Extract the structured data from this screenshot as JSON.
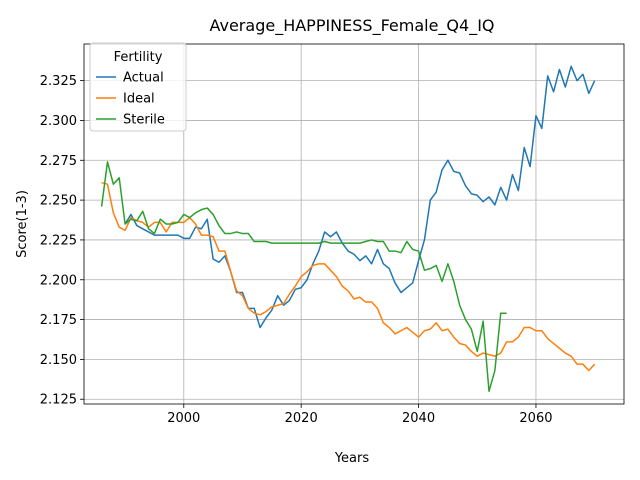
{
  "chart_data": {
    "type": "line",
    "title": "Average_HAPPINESS_Female_Q4_IQ",
    "xlabel": "Years",
    "ylabel": "Score(1-3)",
    "xlim": [
      1983,
      2075
    ],
    "ylim": [
      2.122,
      2.348
    ],
    "xticks": [
      2000,
      2020,
      2040,
      2060
    ],
    "yticks": [
      2.125,
      2.15,
      2.175,
      2.2,
      2.225,
      2.25,
      2.275,
      2.3,
      2.325
    ],
    "ytick_labels": [
      "2.125",
      "2.150",
      "2.175",
      "2.200",
      "2.225",
      "2.250",
      "2.275",
      "2.300",
      "2.325"
    ],
    "grid": true,
    "legend": {
      "title": "Fertility",
      "placement": "top-left"
    },
    "series": [
      {
        "name": "Actual",
        "color": "#1f77b4",
        "x": [
          1990,
          1991,
          1992,
          1993,
          1994,
          1995,
          1996,
          1997,
          1998,
          1999,
          2000,
          2001,
          2002,
          2003,
          2004,
          2005,
          2006,
          2007,
          2008,
          2009,
          2010,
          2011,
          2012,
          2013,
          2014,
          2015,
          2016,
          2017,
          2018,
          2019,
          2020,
          2021,
          2022,
          2023,
          2024,
          2025,
          2026,
          2027,
          2028,
          2029,
          2030,
          2031,
          2032,
          2033,
          2034,
          2035,
          2036,
          2037,
          2038,
          2039,
          2040,
          2041,
          2042,
          2043,
          2044,
          2045,
          2046,
          2047,
          2048,
          2049,
          2050,
          2051,
          2052,
          2053,
          2054,
          2055,
          2056,
          2057,
          2058,
          2059,
          2060,
          2061,
          2062,
          2063,
          2064,
          2065,
          2066,
          2067,
          2068,
          2069,
          2070
        ],
        "values": [
          2.235,
          2.241,
          2.234,
          2.232,
          2.23,
          2.228,
          2.228,
          2.228,
          2.228,
          2.228,
          2.226,
          2.226,
          2.233,
          2.232,
          2.238,
          2.213,
          2.211,
          2.215,
          2.205,
          2.192,
          2.192,
          2.182,
          2.182,
          2.17,
          2.176,
          2.181,
          2.19,
          2.184,
          2.187,
          2.194,
          2.195,
          2.2,
          2.21,
          2.218,
          2.23,
          2.227,
          2.23,
          2.223,
          2.218,
          2.216,
          2.212,
          2.215,
          2.21,
          2.219,
          2.21,
          2.207,
          2.198,
          2.192,
          2.195,
          2.198,
          2.212,
          2.225,
          2.25,
          2.255,
          2.269,
          2.275,
          2.268,
          2.267,
          2.259,
          2.254,
          2.253,
          2.249,
          2.252,
          2.247,
          2.258,
          2.25,
          2.266,
          2.256,
          2.283,
          2.271,
          2.303,
          2.295,
          2.328,
          2.318,
          2.332,
          2.321,
          2.334,
          2.325,
          2.329,
          2.317,
          2.325
        ]
      },
      {
        "name": "Ideal",
        "color": "#ff7f0e",
        "x": [
          1986,
          1987,
          1988,
          1989,
          1990,
          1991,
          1992,
          1993,
          1994,
          1995,
          1996,
          1997,
          1998,
          1999,
          2000,
          2001,
          2002,
          2003,
          2004,
          2005,
          2006,
          2007,
          2008,
          2009,
          2010,
          2011,
          2012,
          2013,
          2014,
          2015,
          2016,
          2017,
          2018,
          2019,
          2020,
          2021,
          2022,
          2023,
          2024,
          2025,
          2026,
          2027,
          2028,
          2029,
          2030,
          2031,
          2032,
          2033,
          2034,
          2035,
          2036,
          2037,
          2038,
          2039,
          2040,
          2041,
          2042,
          2043,
          2044,
          2045,
          2046,
          2047,
          2048,
          2049,
          2050,
          2051,
          2052,
          2053,
          2054,
          2055,
          2056,
          2057,
          2058,
          2059,
          2060,
          2061,
          2062,
          2063,
          2064,
          2065,
          2066,
          2067,
          2068,
          2069,
          2070
        ],
        "values": [
          2.261,
          2.26,
          2.242,
          2.233,
          2.231,
          2.239,
          2.237,
          2.236,
          2.233,
          2.236,
          2.236,
          2.23,
          2.236,
          2.236,
          2.236,
          2.239,
          2.235,
          2.228,
          2.228,
          2.227,
          2.218,
          2.218,
          2.205,
          2.193,
          2.19,
          2.182,
          2.179,
          2.178,
          2.18,
          2.183,
          2.184,
          2.185,
          2.191,
          2.196,
          2.202,
          2.205,
          2.209,
          2.21,
          2.21,
          2.206,
          2.202,
          2.196,
          2.193,
          2.188,
          2.189,
          2.186,
          2.186,
          2.182,
          2.173,
          2.17,
          2.166,
          2.168,
          2.17,
          2.167,
          2.164,
          2.168,
          2.169,
          2.173,
          2.168,
          2.169,
          2.164,
          2.16,
          2.159,
          2.155,
          2.152,
          2.154,
          2.153,
          2.152,
          2.154,
          2.161,
          2.161,
          2.164,
          2.17,
          2.17,
          2.168,
          2.168,
          2.163,
          2.16,
          2.157,
          2.154,
          2.152,
          2.147,
          2.147,
          2.143,
          2.147
        ]
      },
      {
        "name": "Sterile",
        "color": "#2ca02c",
        "x": [
          1986,
          1987,
          1988,
          1989,
          1990,
          1991,
          1992,
          1993,
          1994,
          1995,
          1996,
          1997,
          1998,
          1999,
          2000,
          2001,
          2002,
          2003,
          2004,
          2005,
          2006,
          2007,
          2008,
          2009,
          2010,
          2011,
          2012,
          2013,
          2014,
          2015,
          2016,
          2017,
          2018,
          2019,
          2020,
          2021,
          2022,
          2023,
          2024,
          2025,
          2026,
          2027,
          2028,
          2029,
          2030,
          2031,
          2032,
          2033,
          2034,
          2035,
          2036,
          2037,
          2038,
          2039,
          2040,
          2041,
          2042,
          2043,
          2044,
          2045,
          2046,
          2047,
          2048,
          2049,
          2050,
          2051,
          2052,
          2053,
          2054,
          2055
        ],
        "values": [
          2.246,
          2.274,
          2.26,
          2.264,
          2.235,
          2.238,
          2.237,
          2.243,
          2.232,
          2.229,
          2.238,
          2.235,
          2.235,
          2.236,
          2.241,
          2.239,
          2.242,
          2.244,
          2.245,
          2.241,
          2.234,
          2.229,
          2.229,
          2.23,
          2.229,
          2.229,
          2.224,
          2.224,
          2.224,
          2.223,
          2.223,
          2.223,
          2.223,
          2.223,
          2.223,
          2.223,
          2.223,
          2.223,
          2.224,
          2.223,
          2.223,
          2.223,
          2.223,
          2.223,
          2.223,
          2.224,
          2.225,
          2.224,
          2.224,
          2.218,
          2.218,
          2.217,
          2.224,
          2.219,
          2.218,
          2.206,
          2.207,
          2.209,
          2.199,
          2.21,
          2.199,
          2.184,
          2.175,
          2.169,
          2.155,
          2.174,
          2.13,
          2.143,
          2.179,
          2.179
        ]
      }
    ]
  }
}
